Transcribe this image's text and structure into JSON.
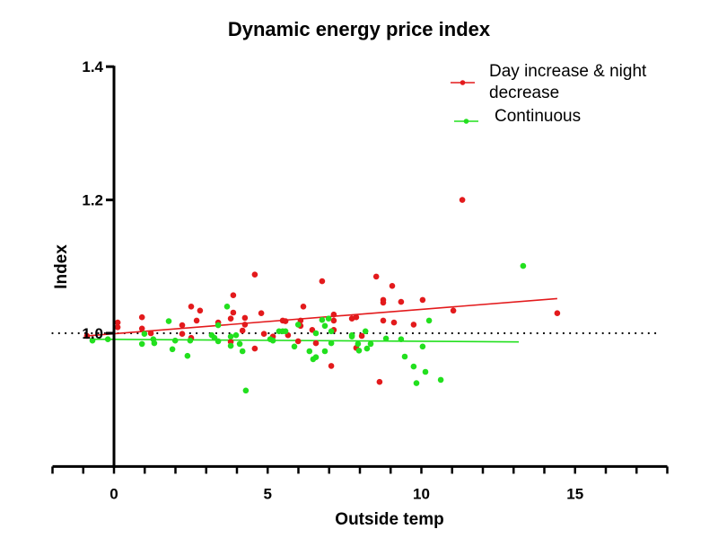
{
  "chart_data": {
    "type": "scatter",
    "title": "Dynamic energy price index",
    "xlabel": "Outside temp",
    "ylabel": "Index",
    "xlim": [
      -2,
      18
    ],
    "ylim": [
      0.8,
      1.4
    ],
    "x_ticks": [
      0,
      5,
      10,
      15
    ],
    "x_minor_tick_step": 1,
    "y_ticks": [
      1.0,
      1.2,
      1.4
    ],
    "y_tick_labels": [
      "1.0",
      "1.2",
      "1.4"
    ],
    "x_tick_labels": [
      "0",
      "5",
      "10",
      "15"
    ],
    "grid": false,
    "legend_position": "top-right",
    "reference_line": {
      "y": 1.0,
      "style": "dotted",
      "color": "#000000"
    },
    "series": [
      {
        "name": "Day increase & night decrease",
        "legend_lines": [
          "Day increase & night",
          "decrease"
        ],
        "color": "#e31a1c",
        "trendline": {
          "x": [
            -0.88,
            14.42
          ],
          "y": [
            0.996,
            1.052
          ]
        },
        "points": [
          [
            -0.88,
            0.996
          ],
          [
            0.12,
            1.016
          ],
          [
            0.12,
            1.009
          ],
          [
            0.91,
            1.024
          ],
          [
            0.91,
            1.007
          ],
          [
            1.2,
            1.0
          ],
          [
            2.22,
            1.012
          ],
          [
            2.22,
            0.999
          ],
          [
            2.51,
            1.04
          ],
          [
            2.8,
            1.034
          ],
          [
            2.69,
            1.019
          ],
          [
            2.51,
            0.993
          ],
          [
            3.39,
            1.016
          ],
          [
            3.88,
            1.057
          ],
          [
            3.88,
            1.031
          ],
          [
            3.8,
            1.022
          ],
          [
            3.8,
            0.987
          ],
          [
            4.26,
            1.023
          ],
          [
            4.26,
            1.013
          ],
          [
            4.18,
            1.004
          ],
          [
            4.58,
            1.088
          ],
          [
            4.79,
            1.03
          ],
          [
            4.88,
            0.999
          ],
          [
            4.58,
            0.977
          ],
          [
            5.17,
            0.995
          ],
          [
            5.49,
            1.019
          ],
          [
            5.58,
            1.018
          ],
          [
            5.66,
            0.997
          ],
          [
            5.99,
            0.988
          ],
          [
            6.07,
            1.011
          ],
          [
            6.07,
            1.019
          ],
          [
            6.16,
            1.04
          ],
          [
            6.45,
            1.005
          ],
          [
            6.57,
            0.985
          ],
          [
            6.77,
            1.078
          ],
          [
            7.15,
            1.028
          ],
          [
            7.15,
            1.019
          ],
          [
            7.15,
            1.005
          ],
          [
            7.07,
            0.951
          ],
          [
            7.74,
            1.022
          ],
          [
            7.88,
            1.024
          ],
          [
            7.88,
            0.978
          ],
          [
            8.06,
            0.996
          ],
          [
            8.53,
            1.085
          ],
          [
            8.76,
            1.05
          ],
          [
            8.76,
            1.046
          ],
          [
            8.76,
            1.019
          ],
          [
            9.05,
            1.071
          ],
          [
            9.11,
            1.016
          ],
          [
            8.64,
            0.927
          ],
          [
            9.34,
            1.047
          ],
          [
            10.04,
            1.05
          ],
          [
            9.75,
            1.013
          ],
          [
            11.04,
            1.034
          ],
          [
            11.33,
            1.2
          ],
          [
            14.42,
            1.03
          ]
        ]
      },
      {
        "name": "Continuous",
        "legend_lines": [
          "Continuous"
        ],
        "color": "#22e01e",
        "trendline": {
          "x": [
            -0.79,
            13.17
          ],
          "y": [
            0.991,
            0.987
          ]
        },
        "points": [
          [
            -0.7,
            0.989
          ],
          [
            -0.2,
            0.991
          ],
          [
            0.91,
            0.984
          ],
          [
            0.99,
            0.999
          ],
          [
            1.28,
            0.991
          ],
          [
            1.31,
            0.985
          ],
          [
            1.78,
            1.018
          ],
          [
            1.9,
            0.976
          ],
          [
            1.99,
            0.989
          ],
          [
            2.39,
            0.966
          ],
          [
            2.48,
            0.989
          ],
          [
            3.18,
            0.997
          ],
          [
            3.27,
            0.993
          ],
          [
            3.39,
            0.988
          ],
          [
            3.39,
            1.012
          ],
          [
            3.68,
            1.04
          ],
          [
            3.8,
            0.995
          ],
          [
            3.8,
            0.981
          ],
          [
            3.97,
            0.997
          ],
          [
            4.09,
            0.984
          ],
          [
            4.18,
            0.973
          ],
          [
            4.29,
            0.914
          ],
          [
            5.08,
            0.991
          ],
          [
            5.17,
            0.989
          ],
          [
            5.37,
            1.003
          ],
          [
            5.49,
            1.003
          ],
          [
            5.58,
            1.003
          ],
          [
            5.87,
            0.98
          ],
          [
            5.99,
            1.013
          ],
          [
            6.57,
            1.0
          ],
          [
            6.36,
            0.973
          ],
          [
            6.48,
            0.961
          ],
          [
            6.57,
            0.964
          ],
          [
            6.77,
            1.02
          ],
          [
            6.86,
            1.011
          ],
          [
            6.86,
            0.973
          ],
          [
            6.98,
            1.022
          ],
          [
            7.07,
            1.003
          ],
          [
            7.07,
            0.985
          ],
          [
            7.74,
            0.997
          ],
          [
            7.74,
            0.995
          ],
          [
            7.94,
            0.984
          ],
          [
            7.97,
            0.974
          ],
          [
            8.18,
            1.003
          ],
          [
            8.23,
            0.977
          ],
          [
            8.35,
            0.984
          ],
          [
            8.85,
            0.992
          ],
          [
            9.34,
            0.991
          ],
          [
            10.25,
            1.019
          ],
          [
            10.04,
            0.98
          ],
          [
            9.46,
            0.965
          ],
          [
            9.75,
            0.95
          ],
          [
            10.13,
            0.942
          ],
          [
            9.84,
            0.925
          ],
          [
            10.63,
            0.93
          ],
          [
            13.31,
            1.101
          ]
        ]
      }
    ]
  }
}
